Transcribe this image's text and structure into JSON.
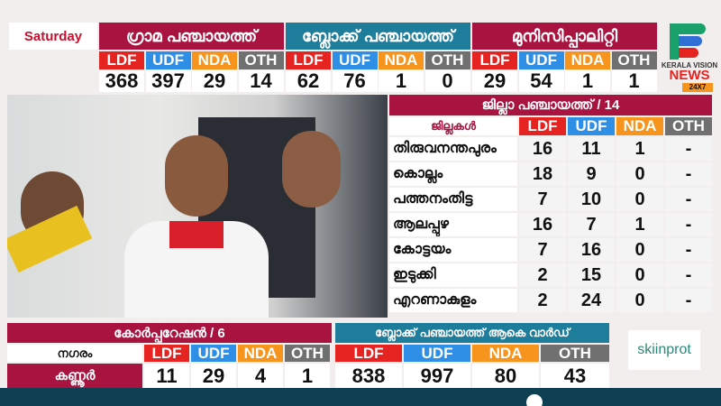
{
  "day": "Saturday",
  "parties": [
    "LDF",
    "UDF",
    "NDA",
    "OTH"
  ],
  "colors": {
    "ldf": "#e52320",
    "udf": "#2f8fe6",
    "nda": "#f7941d",
    "oth": "#707070",
    "crimson": "#a8143f",
    "teal": "#1f7d9c"
  },
  "top": [
    {
      "title": "ഗ്രാമ പഞ്ചായത്ത്",
      "values": [
        "368",
        "397",
        "29",
        "14"
      ]
    },
    {
      "title": "ബ്ലോക്ക് പഞ്ചായത്ത്",
      "values": [
        "62",
        "76",
        "1",
        "0"
      ]
    },
    {
      "title": "മുനിസിപ്പാലിറ്റി",
      "values": [
        "29",
        "54",
        "1",
        "1"
      ]
    }
  ],
  "logo": {
    "text": "KERALA VISION",
    "news": "NEWS",
    "tag": "24X7"
  },
  "district": {
    "title": "ജില്ലാ പഞ്ചായത്ത് / 14",
    "col": "ജില്ലകൾ",
    "rows": [
      {
        "name": "തിരുവനന്തപുരം",
        "v": [
          "16",
          "11",
          "1",
          "-"
        ]
      },
      {
        "name": "കൊല്ലം",
        "v": [
          "18",
          "9",
          "0",
          "-"
        ]
      },
      {
        "name": "പത്തനംതിട്ട",
        "v": [
          "7",
          "10",
          "0",
          "-"
        ]
      },
      {
        "name": "ആലപ്പുഴ",
        "v": [
          "16",
          "7",
          "1",
          "-"
        ]
      },
      {
        "name": "കോട്ടയം",
        "v": [
          "7",
          "16",
          "0",
          "-"
        ]
      },
      {
        "name": "ഇടുക്കി",
        "v": [
          "2",
          "15",
          "0",
          "-"
        ]
      },
      {
        "name": "എറണാകുളം",
        "v": [
          "2",
          "24",
          "0",
          "-"
        ]
      }
    ]
  },
  "corporation": {
    "title": "കോർപ്പറേഷൻ / 6",
    "col": "നഗരം",
    "city": "കണ്ണൂർ",
    "values": [
      "11",
      "29",
      "4",
      "1"
    ]
  },
  "blockward": {
    "title": "ബ്ലോക്ക് പഞ്ചായത്ത് ആകെ വാർഡ്",
    "values": [
      "838",
      "997",
      "80",
      "43"
    ]
  },
  "sponsor": "skiinprot"
}
